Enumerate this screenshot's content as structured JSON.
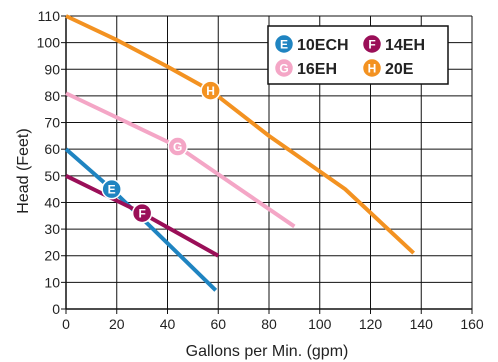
{
  "chart_data": {
    "type": "line",
    "title": "",
    "xlabel": "Gallons per Min. (gpm)",
    "ylabel": "Head (Feet)",
    "xlim": [
      0,
      160
    ],
    "ylim": [
      0,
      110
    ],
    "xticks": [
      0,
      20,
      40,
      60,
      80,
      100,
      120,
      140,
      160
    ],
    "yticks": [
      0,
      10,
      20,
      30,
      40,
      50,
      60,
      70,
      80,
      90,
      100,
      110
    ],
    "grid": true,
    "legend_position": "top-right",
    "series": [
      {
        "name": "10ECH",
        "marker": "E",
        "color": "#1f84c1",
        "x": [
          0,
          18,
          30,
          59
        ],
        "y": [
          60,
          45,
          34,
          7
        ],
        "label_point": [
          18,
          45
        ]
      },
      {
        "name": "14EH",
        "marker": "F",
        "color": "#9a0f58",
        "x": [
          0,
          30,
          60
        ],
        "y": [
          50,
          36,
          20
        ],
        "label_point": [
          30,
          36
        ]
      },
      {
        "name": "16EH",
        "marker": "G",
        "color": "#f4a6c6",
        "x": [
          0,
          44,
          90
        ],
        "y": [
          81,
          61,
          31
        ],
        "label_point": [
          44,
          61
        ]
      },
      {
        "name": "20E",
        "marker": "H",
        "color": "#f39221",
        "x": [
          0,
          20,
          40,
          57,
          80,
          110,
          137
        ],
        "y": [
          110,
          101,
          91,
          82,
          65,
          45,
          21
        ],
        "label_point": [
          57,
          82
        ]
      }
    ]
  }
}
